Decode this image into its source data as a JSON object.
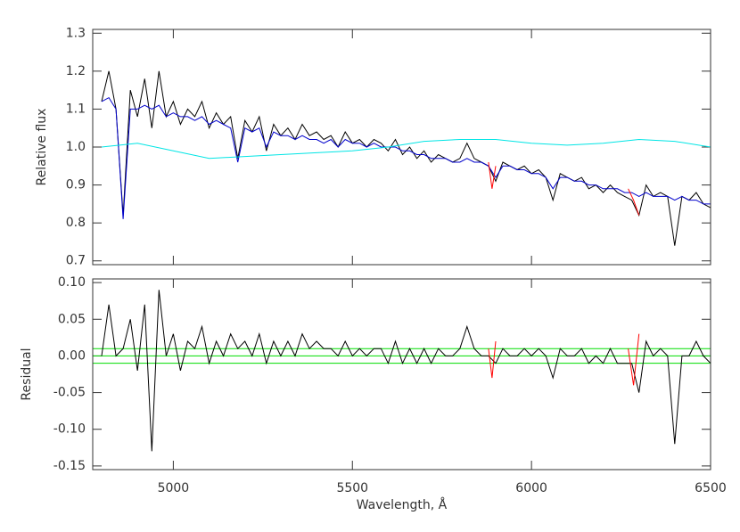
{
  "chart_data": [
    {
      "type": "line",
      "ylabel": "Relative flux",
      "x": [
        4800,
        4820,
        4840,
        4860,
        4880,
        4900,
        4920,
        4940,
        4960,
        4980,
        5000,
        5020,
        5040,
        5060,
        5080,
        5100,
        5120,
        5140,
        5160,
        5180,
        5200,
        5220,
        5240,
        5260,
        5280,
        5300,
        5320,
        5340,
        5360,
        5380,
        5400,
        5420,
        5440,
        5460,
        5480,
        5500,
        5520,
        5540,
        5560,
        5580,
        5600,
        5620,
        5640,
        5660,
        5680,
        5700,
        5720,
        5740,
        5760,
        5780,
        5800,
        5820,
        5840,
        5860,
        5880,
        5900,
        5920,
        5940,
        5960,
        5980,
        6000,
        6020,
        6040,
        6060,
        6080,
        6100,
        6120,
        6140,
        6160,
        6180,
        6200,
        6220,
        6240,
        6260,
        6280,
        6300,
        6320,
        6340,
        6360,
        6380,
        6400,
        6420,
        6440,
        6460,
        6480,
        6500
      ],
      "series": [
        {
          "color": "#000000",
          "values": [
            1.12,
            1.2,
            1.1,
            0.82,
            1.15,
            1.08,
            1.18,
            1.05,
            1.2,
            1.08,
            1.12,
            1.06,
            1.1,
            1.08,
            1.12,
            1.05,
            1.09,
            1.06,
            1.08,
            0.97,
            1.07,
            1.04,
            1.08,
            0.99,
            1.06,
            1.03,
            1.05,
            1.02,
            1.06,
            1.03,
            1.04,
            1.02,
            1.03,
            1.0,
            1.04,
            1.01,
            1.02,
            1.0,
            1.02,
            1.01,
            0.99,
            1.02,
            0.98,
            1.0,
            0.97,
            0.99,
            0.96,
            0.98,
            0.97,
            0.96,
            0.97,
            1.01,
            0.97,
            0.96,
            0.95,
            0.91,
            0.96,
            0.95,
            0.94,
            0.95,
            0.93,
            0.94,
            0.92,
            0.86,
            0.93,
            0.92,
            0.91,
            0.92,
            0.89,
            0.9,
            0.88,
            0.9,
            0.88,
            0.87,
            0.86,
            0.82,
            0.9,
            0.87,
            0.88,
            0.87,
            0.74,
            0.87,
            0.86,
            0.88,
            0.85,
            0.84
          ]
        },
        {
          "color": "#0000cc",
          "values": [
            1.12,
            1.13,
            1.1,
            0.81,
            1.1,
            1.1,
            1.11,
            1.1,
            1.11,
            1.08,
            1.09,
            1.08,
            1.08,
            1.07,
            1.08,
            1.06,
            1.07,
            1.06,
            1.05,
            0.96,
            1.05,
            1.04,
            1.05,
            1.0,
            1.04,
            1.03,
            1.03,
            1.02,
            1.03,
            1.02,
            1.02,
            1.01,
            1.02,
            1.0,
            1.02,
            1.01,
            1.01,
            1.0,
            1.01,
            1.0,
            1.0,
            1.0,
            0.99,
            0.99,
            0.98,
            0.98,
            0.97,
            0.97,
            0.97,
            0.96,
            0.96,
            0.97,
            0.96,
            0.96,
            0.95,
            0.92,
            0.95,
            0.95,
            0.94,
            0.94,
            0.93,
            0.93,
            0.92,
            0.89,
            0.92,
            0.92,
            0.91,
            0.91,
            0.9,
            0.9,
            0.89,
            0.89,
            0.89,
            0.88,
            0.88,
            0.87,
            0.88,
            0.87,
            0.87,
            0.87,
            0.86,
            0.87,
            0.86,
            0.86,
            0.85,
            0.85
          ]
        },
        {
          "color": "#00e5e5",
          "x": [
            4800,
            4900,
            5000,
            5100,
            5200,
            5300,
            5400,
            5500,
            5600,
            5700,
            5800,
            5900,
            6000,
            6100,
            6200,
            6300,
            6400,
            6500
          ],
          "values": [
            1.0,
            1.01,
            0.99,
            0.97,
            0.975,
            0.98,
            0.985,
            0.99,
            1.0,
            1.015,
            1.02,
            1.02,
            1.01,
            1.005,
            1.01,
            1.02,
            1.015,
            1.0
          ]
        },
        {
          "color": "#ff0000",
          "x": [
            5880,
            5890,
            5900,
            null,
            6270,
            6285,
            6300
          ],
          "values": [
            0.96,
            0.89,
            0.95,
            null,
            0.89,
            0.86,
            0.82
          ]
        }
      ],
      "xlim": [
        4775,
        6500
      ],
      "xticks": [
        5000,
        5500,
        6000,
        6500
      ],
      "show_xtick_labels": false,
      "ylim": [
        0.69,
        1.31
      ],
      "yticks": [
        0.7,
        0.8,
        0.9,
        {
          "value": 1,
          "label": "1.0"
        },
        1.1,
        1.2,
        1.3
      ]
    },
    {
      "type": "line",
      "ylabel": "Residual",
      "xlabel": "Wavelength, Å",
      "x": [
        4800,
        4820,
        4840,
        4860,
        4880,
        4900,
        4920,
        4940,
        4960,
        4980,
        5000,
        5020,
        5040,
        5060,
        5080,
        5100,
        5120,
        5140,
        5160,
        5180,
        5200,
        5220,
        5240,
        5260,
        5280,
        5300,
        5320,
        5340,
        5360,
        5380,
        5400,
        5420,
        5440,
        5460,
        5480,
        5500,
        5520,
        5540,
        5560,
        5580,
        5600,
        5620,
        5640,
        5660,
        5680,
        5700,
        5720,
        5740,
        5760,
        5780,
        5800,
        5820,
        5840,
        5860,
        5880,
        5900,
        5920,
        5940,
        5960,
        5980,
        6000,
        6020,
        6040,
        6060,
        6080,
        6100,
        6120,
        6140,
        6160,
        6180,
        6200,
        6220,
        6240,
        6260,
        6280,
        6300,
        6320,
        6340,
        6360,
        6380,
        6400,
        6420,
        6440,
        6460,
        6480,
        6500
      ],
      "series": [
        {
          "color": "#000000",
          "values": [
            0,
            0.07,
            0,
            0.01,
            0.05,
            -0.02,
            0.07,
            -0.13,
            0.09,
            0,
            0.03,
            -0.02,
            0.02,
            0.01,
            0.04,
            -0.01,
            0.02,
            0,
            0.03,
            0.01,
            0.02,
            0,
            0.03,
            -0.01,
            0.02,
            0,
            0.02,
            0,
            0.03,
            0.01,
            0.02,
            0.01,
            0.01,
            0,
            0.02,
            0,
            0.01,
            0,
            0.01,
            0.01,
            -0.01,
            0.02,
            -0.01,
            0.01,
            -0.01,
            0.01,
            -0.01,
            0.01,
            0,
            0,
            0.01,
            0.04,
            0.01,
            0,
            0,
            -0.01,
            0.01,
            0,
            0,
            0.01,
            0,
            0.01,
            0,
            -0.03,
            0.01,
            0,
            0,
            0.01,
            -0.01,
            0,
            -0.01,
            0.01,
            -0.01,
            -0.01,
            -0.01,
            -0.05,
            0.02,
            0,
            0.01,
            0,
            -0.12,
            0,
            0,
            0.02,
            0,
            -0.01
          ]
        },
        {
          "color": "#ff0000",
          "x": [
            5880,
            5890,
            5900,
            null,
            6270,
            6285,
            6300
          ],
          "values": [
            0.01,
            -0.03,
            0.02,
            null,
            0.01,
            -0.04,
            0.03
          ]
        }
      ],
      "hlines": [
        -0.01,
        0,
        0.01
      ],
      "hline_color": "#00dd00",
      "xlim": [
        4775,
        6500
      ],
      "xticks": [
        5000,
        5500,
        6000,
        6500
      ],
      "show_xtick_labels": true,
      "ylim": [
        -0.155,
        0.105
      ],
      "yticks": [
        {
          "value": 0.1,
          "label": "0.10"
        },
        {
          "value": 0.05,
          "label": "0.05"
        },
        {
          "value": 0,
          "label": "0.00"
        },
        {
          "value": -0.05,
          "label": "-0.05"
        },
        {
          "value": -0.1,
          "label": "-0.10"
        },
        {
          "value": -0.15,
          "label": "-0.15"
        }
      ]
    }
  ]
}
